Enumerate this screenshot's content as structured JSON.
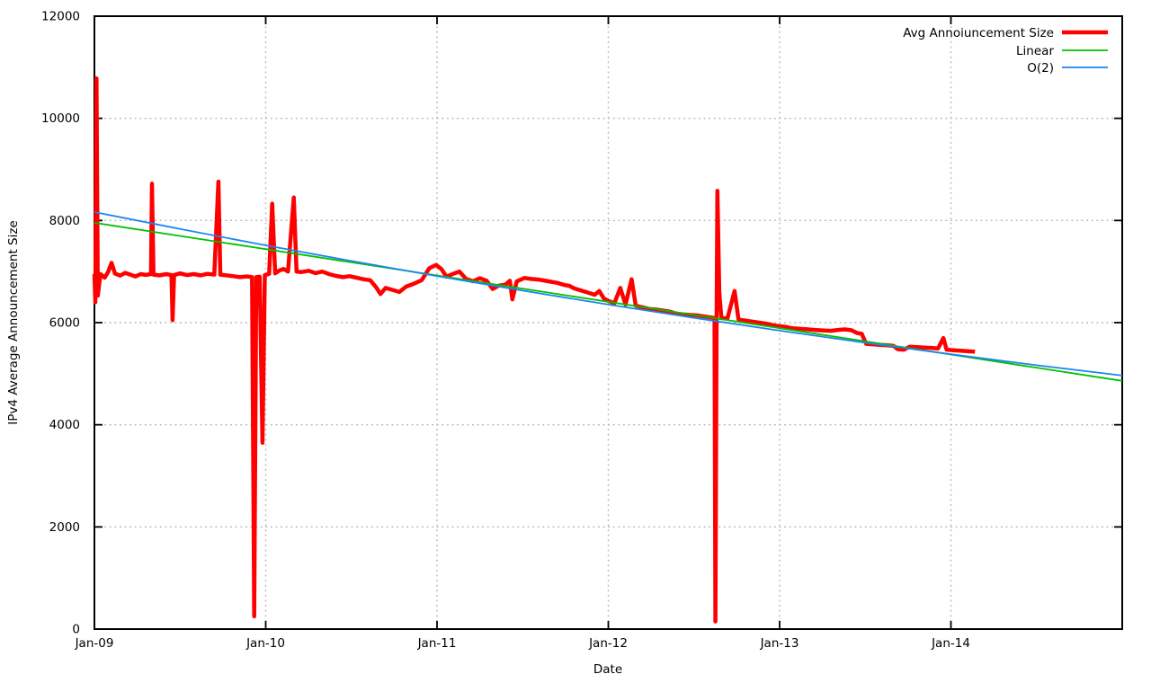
{
  "figure": {
    "background": "#ffffff",
    "axis_color": "#000000",
    "grid_color": "#b3b3b3"
  },
  "chart_data": {
    "type": "line",
    "title": "",
    "xlabel": "Date",
    "ylabel": "IPv4 Average Announcement Size",
    "x_unit": "years since Jan-2009",
    "xlim": [
      0,
      6
    ],
    "ylim": [
      0,
      12000
    ],
    "x_tick_positions": [
      0,
      1,
      2,
      3,
      4,
      5
    ],
    "x_tick_labels": [
      "Jan-09",
      "Jan-10",
      "Jan-11",
      "Jan-12",
      "Jan-13",
      "Jan-14"
    ],
    "y_ticks": [
      0,
      2000,
      4000,
      6000,
      8000,
      10000,
      12000
    ],
    "grid": true,
    "grid_style": "dotted",
    "legend_position": "top-right",
    "series": [
      {
        "name": "Avg Annoiuncement Size",
        "color": "#ff0000",
        "width": 4.5,
        "points": [
          [
            0.0,
            6950
          ],
          [
            0.005,
            6400
          ],
          [
            0.012,
            10780
          ],
          [
            0.02,
            6530
          ],
          [
            0.035,
            6950
          ],
          [
            0.06,
            6880
          ],
          [
            0.08,
            6990
          ],
          [
            0.1,
            7170
          ],
          [
            0.12,
            6960
          ],
          [
            0.15,
            6920
          ],
          [
            0.18,
            6975
          ],
          [
            0.21,
            6940
          ],
          [
            0.24,
            6905
          ],
          [
            0.27,
            6950
          ],
          [
            0.3,
            6935
          ],
          [
            0.33,
            6950
          ],
          [
            0.336,
            8720
          ],
          [
            0.345,
            6940
          ],
          [
            0.38,
            6925
          ],
          [
            0.42,
            6950
          ],
          [
            0.45,
            6930
          ],
          [
            0.456,
            6050
          ],
          [
            0.465,
            6930
          ],
          [
            0.5,
            6965
          ],
          [
            0.54,
            6930
          ],
          [
            0.58,
            6950
          ],
          [
            0.62,
            6925
          ],
          [
            0.66,
            6955
          ],
          [
            0.7,
            6940
          ],
          [
            0.724,
            8760
          ],
          [
            0.735,
            6940
          ],
          [
            0.77,
            6925
          ],
          [
            0.81,
            6910
          ],
          [
            0.85,
            6890
          ],
          [
            0.89,
            6905
          ],
          [
            0.92,
            6890
          ],
          [
            0.933,
            250
          ],
          [
            0.945,
            6890
          ],
          [
            0.965,
            6900
          ],
          [
            0.981,
            3650
          ],
          [
            0.995,
            6930
          ],
          [
            1.02,
            6955
          ],
          [
            1.038,
            8330
          ],
          [
            1.055,
            6965
          ],
          [
            1.08,
            7020
          ],
          [
            1.105,
            7050
          ],
          [
            1.13,
            7000
          ],
          [
            1.164,
            8450
          ],
          [
            1.18,
            7000
          ],
          [
            1.21,
            6990
          ],
          [
            1.25,
            7015
          ],
          [
            1.29,
            6970
          ],
          [
            1.33,
            7000
          ],
          [
            1.37,
            6950
          ],
          [
            1.41,
            6915
          ],
          [
            1.45,
            6890
          ],
          [
            1.49,
            6910
          ],
          [
            1.53,
            6880
          ],
          [
            1.57,
            6850
          ],
          [
            1.61,
            6830
          ],
          [
            1.645,
            6690
          ],
          [
            1.67,
            6560
          ],
          [
            1.7,
            6680
          ],
          [
            1.745,
            6635
          ],
          [
            1.78,
            6600
          ],
          [
            1.82,
            6705
          ],
          [
            1.86,
            6755
          ],
          [
            1.91,
            6830
          ],
          [
            1.955,
            7065
          ],
          [
            1.995,
            7130
          ],
          [
            2.025,
            7050
          ],
          [
            2.055,
            6900
          ],
          [
            2.09,
            6950
          ],
          [
            2.13,
            7000
          ],
          [
            2.17,
            6855
          ],
          [
            2.21,
            6810
          ],
          [
            2.25,
            6870
          ],
          [
            2.29,
            6820
          ],
          [
            2.325,
            6660
          ],
          [
            2.36,
            6725
          ],
          [
            2.4,
            6745
          ],
          [
            2.425,
            6820
          ],
          [
            2.44,
            6455
          ],
          [
            2.465,
            6805
          ],
          [
            2.51,
            6875
          ],
          [
            2.55,
            6855
          ],
          [
            2.6,
            6840
          ],
          [
            2.65,
            6810
          ],
          [
            2.7,
            6780
          ],
          [
            2.745,
            6735
          ],
          [
            2.774,
            6720
          ],
          [
            2.8,
            6670
          ],
          [
            2.84,
            6630
          ],
          [
            2.88,
            6590
          ],
          [
            2.92,
            6545
          ],
          [
            2.947,
            6620
          ],
          [
            2.975,
            6470
          ],
          [
            3.0,
            6425
          ],
          [
            3.035,
            6380
          ],
          [
            3.07,
            6680
          ],
          [
            3.1,
            6355
          ],
          [
            3.136,
            6850
          ],
          [
            3.16,
            6330
          ],
          [
            3.2,
            6300
          ],
          [
            3.24,
            6265
          ],
          [
            3.28,
            6255
          ],
          [
            3.32,
            6235
          ],
          [
            3.36,
            6215
          ],
          [
            3.4,
            6175
          ],
          [
            3.44,
            6160
          ],
          [
            3.48,
            6150
          ],
          [
            3.52,
            6140
          ],
          [
            3.56,
            6120
          ],
          [
            3.6,
            6100
          ],
          [
            3.62,
            6090
          ],
          [
            3.625,
            150
          ],
          [
            3.632,
            6050
          ],
          [
            3.637,
            8580
          ],
          [
            3.648,
            6600
          ],
          [
            3.66,
            6090
          ],
          [
            3.695,
            6080
          ],
          [
            3.737,
            6620
          ],
          [
            3.76,
            6060
          ],
          [
            3.8,
            6040
          ],
          [
            3.84,
            6020
          ],
          [
            3.88,
            6000
          ],
          [
            3.92,
            5980
          ],
          [
            3.96,
            5950
          ],
          [
            4.0,
            5930
          ],
          [
            4.04,
            5915
          ],
          [
            4.07,
            5890
          ],
          [
            4.11,
            5880
          ],
          [
            4.16,
            5870
          ],
          [
            4.21,
            5855
          ],
          [
            4.26,
            5845
          ],
          [
            4.3,
            5840
          ],
          [
            4.34,
            5858
          ],
          [
            4.38,
            5868
          ],
          [
            4.42,
            5850
          ],
          [
            4.45,
            5800
          ],
          [
            4.48,
            5780
          ],
          [
            4.505,
            5585
          ],
          [
            4.55,
            5575
          ],
          [
            4.59,
            5565
          ],
          [
            4.63,
            5555
          ],
          [
            4.665,
            5545
          ],
          [
            4.69,
            5480
          ],
          [
            4.725,
            5470
          ],
          [
            4.76,
            5530
          ],
          [
            4.8,
            5520
          ],
          [
            4.845,
            5510
          ],
          [
            4.885,
            5505
          ],
          [
            4.925,
            5495
          ],
          [
            4.956,
            5700
          ],
          [
            4.975,
            5470
          ],
          [
            5.015,
            5460
          ],
          [
            5.055,
            5450
          ],
          [
            5.095,
            5440
          ],
          [
            5.14,
            5430
          ]
        ]
      },
      {
        "name": "Linear",
        "color": "#00c000",
        "width": 1.8,
        "points": [
          [
            0,
            7955
          ],
          [
            6,
            4860
          ]
        ]
      },
      {
        "name": "O(2)",
        "color": "#1c86ee",
        "width": 1.8,
        "points": [
          [
            0,
            8165
          ],
          [
            0.5,
            7833
          ],
          [
            1,
            7514
          ],
          [
            1.5,
            7207
          ],
          [
            2,
            6911
          ],
          [
            2.5,
            6627
          ],
          [
            3,
            6354
          ],
          [
            3.5,
            6093
          ],
          [
            4,
            5844
          ],
          [
            4.5,
            5606
          ],
          [
            5,
            5380
          ],
          [
            5.5,
            5166
          ],
          [
            6,
            4963
          ]
        ]
      }
    ]
  }
}
